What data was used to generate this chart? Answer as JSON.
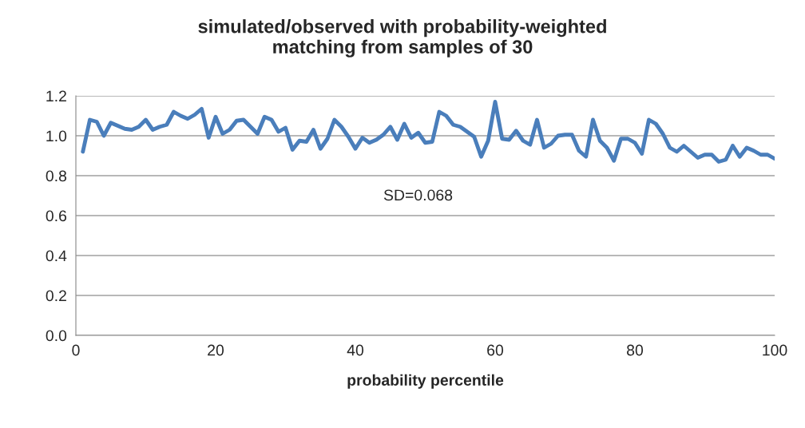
{
  "chart_data": {
    "type": "line",
    "title": "simulated/observed with probability-weighted\nmatching from samples of 30",
    "xlabel": "probability percentile",
    "x": [
      1,
      2,
      3,
      4,
      5,
      6,
      7,
      8,
      9,
      10,
      11,
      12,
      13,
      14,
      15,
      16,
      17,
      18,
      19,
      20,
      21,
      22,
      23,
      24,
      25,
      26,
      27,
      28,
      29,
      30,
      31,
      32,
      33,
      34,
      35,
      36,
      37,
      38,
      39,
      40,
      41,
      42,
      43,
      44,
      45,
      46,
      47,
      48,
      49,
      50,
      51,
      52,
      53,
      54,
      55,
      56,
      57,
      58,
      59,
      60,
      61,
      62,
      63,
      64,
      65,
      66,
      67,
      68,
      69,
      70,
      71,
      72,
      73,
      74,
      75,
      76,
      77,
      78,
      79,
      80,
      81,
      82,
      83,
      84,
      85,
      86,
      87,
      88,
      89,
      90,
      91,
      92,
      93,
      94,
      95,
      96,
      97,
      98,
      99,
      100
    ],
    "series": [
      {
        "color": "#4a7ebb",
        "values": [
          0.92,
          1.08,
          1.07,
          1.0,
          1.065,
          1.05,
          1.035,
          1.03,
          1.045,
          1.08,
          1.03,
          1.045,
          1.055,
          1.12,
          1.1,
          1.085,
          1.105,
          1.135,
          0.99,
          1.095,
          1.01,
          1.03,
          1.075,
          1.08,
          1.045,
          1.01,
          1.095,
          1.08,
          1.02,
          1.04,
          0.93,
          0.975,
          0.97,
          1.03,
          0.935,
          0.985,
          1.08,
          1.045,
          0.995,
          0.935,
          0.99,
          0.965,
          0.98,
          1.005,
          1.045,
          0.98,
          1.06,
          0.99,
          1.015,
          0.965,
          0.97,
          1.12,
          1.1,
          1.055,
          1.045,
          1.02,
          0.995,
          0.895,
          0.975,
          1.17,
          0.985,
          0.98,
          1.025,
          0.975,
          0.955,
          1.08,
          0.94,
          0.96,
          1.0,
          1.005,
          1.005,
          0.925,
          0.895,
          1.08,
          0.975,
          0.94,
          0.875,
          0.985,
          0.985,
          0.965,
          0.91,
          1.08,
          1.06,
          1.01,
          0.94,
          0.92,
          0.95,
          0.92,
          0.89,
          0.905,
          0.905,
          0.87,
          0.88,
          0.95,
          0.895,
          0.94,
          0.925,
          0.905,
          0.905,
          0.885
        ]
      }
    ],
    "annotations": [
      "SD=0.068"
    ],
    "xlim": [
      0,
      100
    ],
    "xticks": [
      0,
      20,
      40,
      60,
      80,
      100
    ],
    "ylim": [
      0,
      1.2
    ],
    "yticks": [
      {
        "value": 0,
        "label": "0.0"
      },
      {
        "value": 0.2,
        "label": "0.2"
      },
      {
        "value": 0.4,
        "label": "0.4"
      },
      {
        "value": 0.6,
        "label": "0.6"
      },
      {
        "value": 0.8,
        "label": "0.8"
      },
      {
        "value": 1.0,
        "label": "1.0"
      },
      {
        "value": 1.2,
        "label": "1.2"
      }
    ],
    "grid": "y",
    "marker": "none",
    "line_style": "solid",
    "legend": false
  }
}
